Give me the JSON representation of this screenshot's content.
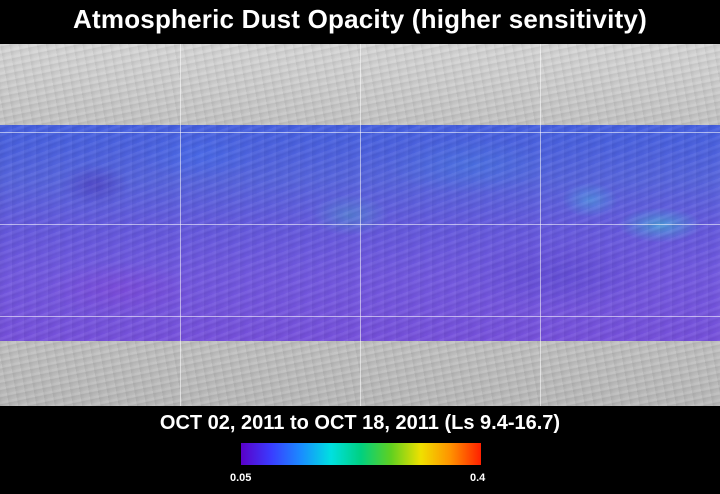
{
  "title": "Atmospheric Dust Opacity (higher sensitivity)",
  "date_range": "OCT 02, 2011 to OCT 18, 2011 (Ls 9.4-16.7)",
  "colorbar": {
    "min_label": "0.05",
    "max_label": "0.4",
    "colors": [
      "#5a00c8",
      "#3a3cff",
      "#1a8cff",
      "#00e0e0",
      "#00d080",
      "#60d020",
      "#f0e000",
      "#ff9000",
      "#ff2000"
    ]
  },
  "map": {
    "background": "grayscale shaded-relief terrain",
    "data_overlay": "dust opacity band",
    "dominant_overlay_colors": [
      "#3a57e4",
      "#6a4ee2",
      "#7047df"
    ]
  }
}
